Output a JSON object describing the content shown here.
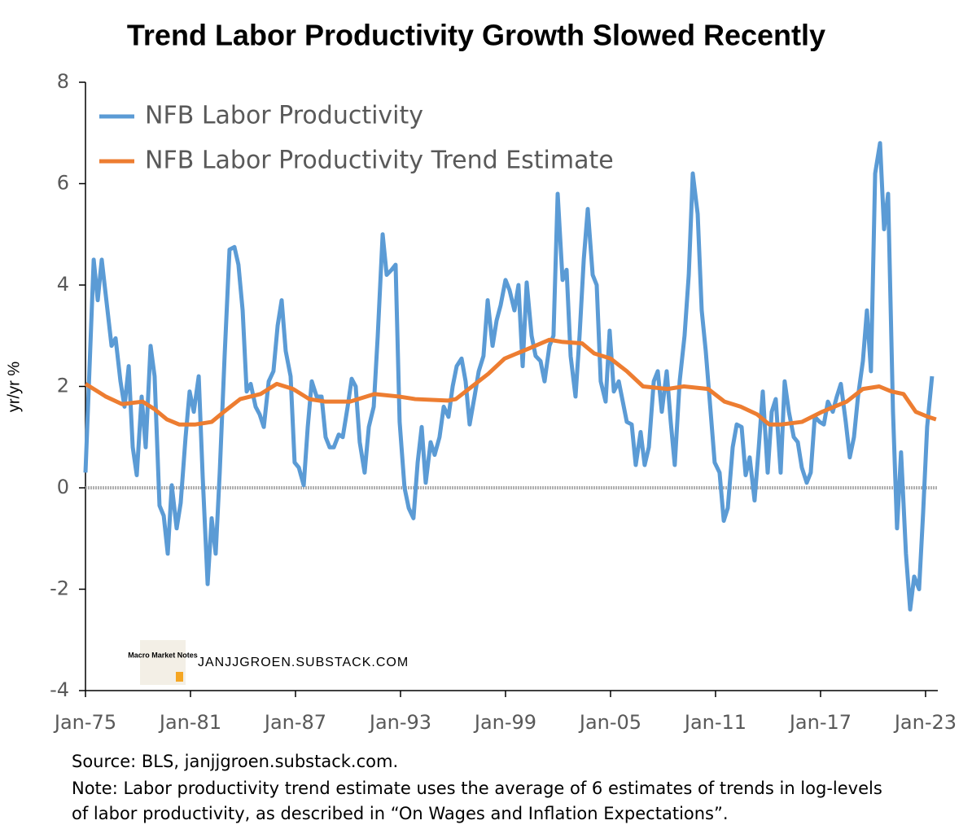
{
  "chart_data": {
    "type": "line",
    "title": "Trend Labor Productivity Growth Slowed Recently",
    "ylabel": "yr/yr %",
    "xlim": [
      1975,
      2023.7
    ],
    "xticks": [
      {
        "value": 1975,
        "label": "Jan-75"
      },
      {
        "value": 1981,
        "label": "Jan-81"
      },
      {
        "value": 1987,
        "label": "Jan-87"
      },
      {
        "value": 1993,
        "label": "Jan-93"
      },
      {
        "value": 1999,
        "label": "Jan-99"
      },
      {
        "value": 2005,
        "label": "Jan-05"
      },
      {
        "value": 2011,
        "label": "Jan-11"
      },
      {
        "value": 2017,
        "label": "Jan-17"
      },
      {
        "value": 2023,
        "label": "Jan-23"
      }
    ],
    "ylim": [
      -4,
      8
    ],
    "yticks": [
      -4,
      -2,
      0,
      2,
      4,
      6,
      8
    ],
    "reference_line": 0,
    "legend": "upper left",
    "watermark": "JANJJGROEN.SUBSTACK.COM",
    "logo_text": "Macro Market Notes",
    "source": "Source: BLS, janjjgroen.substack.com.",
    "note": [
      "Note: Labor productivity trend estimate uses the average of 6 estimates of trends in log-levels",
      "of labor productivity, as described in “On Wages and Inflation Expectations”."
    ],
    "series": [
      {
        "name": "NFB Labor Productivity",
        "color": "#5b9bd5",
        "x": [
          1975,
          1975.47,
          1975.7,
          1975.93,
          1976.16,
          1976.49,
          1976.72,
          1977,
          1977.23,
          1977.47,
          1977.7,
          1977.93,
          1978.21,
          1978.44,
          1978.72,
          1978.95,
          1979.23,
          1979.47,
          1979.7,
          1979.93,
          1980.21,
          1980.44,
          1980.72,
          1980.95,
          1981.19,
          1981.47,
          1981.7,
          1981.98,
          1982.21,
          1982.44,
          1982.67,
          1982.95,
          1983.23,
          1983.51,
          1983.74,
          1983.98,
          1984.21,
          1984.44,
          1984.72,
          1984.95,
          1985.19,
          1985.47,
          1985.74,
          1985.98,
          1986.21,
          1986.44,
          1986.72,
          1986.95,
          1987.19,
          1987.47,
          1987.7,
          1987.93,
          1988.21,
          1988.49,
          1988.72,
          1988.95,
          1989.19,
          1989.47,
          1989.7,
          1989.98,
          1990.21,
          1990.44,
          1990.67,
          1990.95,
          1991.19,
          1991.47,
          1991.7,
          1991.98,
          1992.21,
          1992.49,
          1992.72,
          1992.95,
          1993.23,
          1993.47,
          1993.74,
          1993.98,
          1994.21,
          1994.44,
          1994.72,
          1994.95,
          1995.23,
          1995.47,
          1995.74,
          1995.98,
          1996.21,
          1996.49,
          1996.72,
          1996.95,
          1997.23,
          1997.47,
          1997.74,
          1997.98,
          1998.26,
          1998.49,
          1998.72,
          1999,
          1999.23,
          1999.51,
          1999.74,
          1999.98,
          2000.21,
          2000.49,
          2000.72,
          2001,
          2001.23,
          2001.51,
          2001.74,
          2001.98,
          2002.26,
          2002.49,
          2002.72,
          2003,
          2003.23,
          2003.47,
          2003.7,
          2003.98,
          2004.21,
          2004.44,
          2004.72,
          2004.95,
          2005.19,
          2005.47,
          2005.7,
          2005.93,
          2006.21,
          2006.44,
          2006.72,
          2006.95,
          2007.19,
          2007.47,
          2007.7,
          2007.93,
          2008.21,
          2008.44,
          2008.67,
          2008.95,
          2009.23,
          2009.47,
          2009.7,
          2009.98,
          2010.21,
          2010.44,
          2010.72,
          2010.95,
          2011.23,
          2011.47,
          2011.7,
          2011.98,
          2012.21,
          2012.49,
          2012.72,
          2012.95,
          2013.23,
          2013.47,
          2013.7,
          2013.98,
          2014.21,
          2014.44,
          2014.72,
          2014.95,
          2015.19,
          2015.47,
          2015.7,
          2015.93,
          2016.21,
          2016.44,
          2016.67,
          2016.95,
          2017.19,
          2017.42,
          2017.7,
          2017.93,
          2018.16,
          2018.44,
          2018.67,
          2018.91,
          2019.14,
          2019.42,
          2019.65,
          2019.88,
          2020.12,
          2020.4,
          2020.63,
          2020.86,
          2021.14,
          2021.37,
          2021.6,
          2021.88,
          2022.12,
          2022.35,
          2022.63,
          2022.86,
          2023.09,
          2023.37
        ],
        "values": [
          0.3,
          4.5,
          3.7,
          4.5,
          3.8,
          2.8,
          2.95,
          2.1,
          1.6,
          2.4,
          0.8,
          0.25,
          1.8,
          0.8,
          2.8,
          2.2,
          -0.35,
          -0.55,
          -1.3,
          0.05,
          -0.8,
          -0.3,
          1.0,
          1.9,
          1.5,
          2.2,
          0.2,
          -1.9,
          -0.6,
          -1.3,
          0.3,
          2.6,
          4.7,
          4.75,
          4.4,
          3.5,
          1.9,
          2.05,
          1.6,
          1.45,
          1.2,
          2.1,
          2.3,
          3.2,
          3.7,
          2.7,
          2.2,
          0.5,
          0.4,
          0.05,
          1.2,
          2.1,
          1.8,
          1.8,
          1.0,
          0.8,
          0.8,
          1.05,
          1.0,
          1.6,
          2.15,
          2.0,
          0.9,
          0.3,
          1.2,
          1.6,
          3.0,
          5.0,
          4.2,
          4.3,
          4.4,
          1.3,
          0.0,
          -0.4,
          -0.6,
          0.5,
          1.2,
          0.1,
          0.9,
          0.65,
          1.0,
          1.6,
          1.4,
          2.0,
          2.4,
          2.55,
          2.1,
          1.25,
          1.8,
          2.3,
          2.6,
          3.7,
          2.8,
          3.3,
          3.6,
          4.1,
          3.9,
          3.5,
          4.0,
          2.4,
          4.05,
          3.0,
          2.6,
          2.5,
          2.1,
          2.8,
          3.0,
          5.8,
          4.1,
          4.3,
          2.6,
          1.8,
          3.0,
          4.5,
          5.5,
          4.2,
          4.0,
          2.1,
          1.7,
          3.1,
          1.9,
          2.1,
          1.7,
          1.3,
          1.25,
          0.45,
          1.1,
          0.45,
          0.8,
          2.1,
          2.3,
          1.5,
          2.3,
          1.3,
          0.45,
          2.1,
          3.0,
          4.2,
          6.2,
          5.4,
          3.5,
          2.7,
          1.5,
          0.5,
          0.3,
          -0.65,
          -0.4,
          0.8,
          1.25,
          1.2,
          0.25,
          0.6,
          -0.25,
          0.8,
          1.9,
          0.3,
          1.5,
          1.75,
          0.3,
          2.1,
          1.5,
          1.0,
          0.9,
          0.4,
          0.1,
          0.3,
          1.4,
          1.3,
          1.25,
          1.7,
          1.5,
          1.8,
          2.05,
          1.3,
          0.6,
          1.0,
          1.8,
          2.5,
          3.5,
          2.3,
          6.2,
          6.8,
          5.1,
          5.8,
          1.5,
          -0.8,
          0.7,
          -1.3,
          -2.4,
          -1.75,
          -2.0,
          -0.5,
          1.2,
          2.2
        ]
      },
      {
        "name": "NFB Labor Productivity Trend Estimate",
        "color": "#ed7d31",
        "x": [
          1975,
          1975.47,
          1976.16,
          1977.09,
          1978.26,
          1978.95,
          1979.65,
          1980.35,
          1981.28,
          1982.21,
          1982.91,
          1983.84,
          1985,
          1985.93,
          1986.86,
          1987.79,
          1988.72,
          1990.12,
          1991.51,
          1992.91,
          1993.84,
          1995.7,
          1996.16,
          1997.09,
          1998.02,
          1998.95,
          2000.35,
          2001.51,
          2002.21,
          2003.37,
          2004.07,
          2005,
          2005.93,
          2006.86,
          2008.26,
          2009.19,
          2010.58,
          2011.51,
          2012.44,
          2013.37,
          2014.07,
          2014.77,
          2015.93,
          2017.09,
          2018.49,
          2019.42,
          2020.35,
          2021.05,
          2021.74,
          2022.44,
          2023.14,
          2023.6
        ],
        "values": [
          2.05,
          1.95,
          1.8,
          1.65,
          1.7,
          1.55,
          1.35,
          1.25,
          1.25,
          1.3,
          1.5,
          1.75,
          1.85,
          2.05,
          1.95,
          1.75,
          1.7,
          1.7,
          1.85,
          1.8,
          1.75,
          1.72,
          1.75,
          2.0,
          2.25,
          2.55,
          2.75,
          2.92,
          2.88,
          2.85,
          2.65,
          2.55,
          2.3,
          2.0,
          1.95,
          2.0,
          1.95,
          1.7,
          1.6,
          1.45,
          1.25,
          1.25,
          1.3,
          1.5,
          1.7,
          1.95,
          2.0,
          1.9,
          1.85,
          1.5,
          1.4,
          1.35
        ]
      }
    ]
  }
}
